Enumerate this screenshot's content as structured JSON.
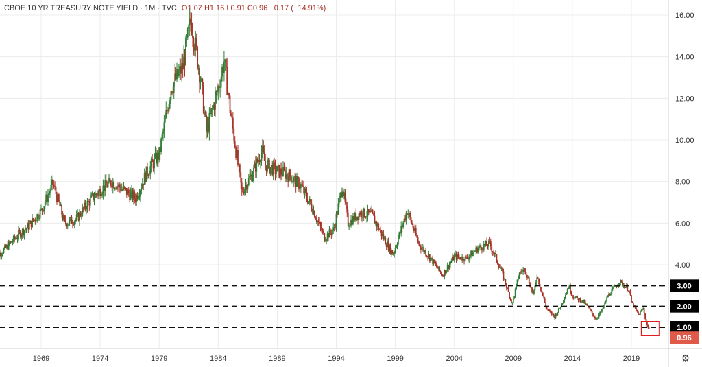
{
  "header": {
    "symbol": "CBOE 10 YR TREASURY NOTE YIELD · 1M · TVC",
    "ohlc": "O1.07  H1.16  L0.91  C0.96  −0.17 (−14.91%)"
  },
  "settings": {
    "icon": "gear-icon"
  },
  "chart_data": {
    "type": "candlestick",
    "title": "CBOE 10 YR TREASURY NOTE YIELD · 1M · TVC",
    "xlabel": "",
    "ylabel": "",
    "xlim": [
      1965.0,
      2021.0
    ],
    "ylim": [
      0.0,
      16.5
    ],
    "x_ticks": [
      "1969",
      "1974",
      "1979",
      "1984",
      "1989",
      "1994",
      "1999",
      "2004",
      "2009",
      "2014",
      "2019"
    ],
    "y_ticks": [
      "4.00",
      "6.00",
      "8.00",
      "10.00",
      "12.00",
      "14.00",
      "16.00"
    ],
    "up_color": "#2e7d32",
    "down_color": "#a83226",
    "grid": true,
    "series": [
      {
        "x": [
          1965.0,
          1966.0,
          1967.0,
          1968.0,
          1969.0,
          1970.0,
          1971.0,
          1972.0,
          1973.0,
          1974.0,
          1975.0,
          1976.0,
          1977.0,
          1978.0,
          1979.0,
          1980.0,
          1981.0,
          1981.7,
          1982.5,
          1983.0,
          1984.0,
          1984.5,
          1985.0,
          1986.0,
          1987.0,
          1987.7,
          1988.0,
          1989.0,
          1990.0,
          1991.0,
          1992.0,
          1993.0,
          1993.8,
          1994.5,
          1995.0,
          1996.0,
          1997.0,
          1998.0,
          1998.8,
          2000.0,
          2001.0,
          2002.0,
          2003.0,
          2004.0,
          2005.0,
          2006.0,
          2007.0,
          2008.0,
          2008.9,
          2009.5,
          2010.0,
          2010.7,
          2011.0,
          2011.8,
          2012.5,
          2013.0,
          2013.7,
          2014.0,
          2015.0,
          2016.0,
          2016.5,
          2017.0,
          2018.0,
          2018.8,
          2019.0,
          2019.6,
          2020.0,
          2020.3,
          2020.5
        ],
        "y": [
          4.3,
          4.8,
          5.4,
          5.9,
          6.6,
          7.9,
          6.0,
          6.2,
          7.0,
          7.6,
          8.0,
          7.6,
          7.2,
          8.5,
          9.3,
          12.5,
          13.5,
          15.8,
          13.0,
          10.4,
          12.5,
          13.8,
          11.5,
          7.5,
          8.5,
          9.5,
          8.8,
          8.5,
          8.3,
          7.8,
          6.7,
          5.3,
          5.7,
          7.8,
          6.0,
          6.5,
          6.4,
          5.3,
          4.5,
          6.6,
          5.0,
          4.3,
          3.5,
          4.4,
          4.3,
          4.8,
          5.0,
          3.7,
          2.1,
          3.6,
          3.8,
          2.5,
          3.5,
          1.9,
          1.5,
          2.0,
          3.0,
          2.5,
          2.2,
          1.4,
          1.8,
          2.5,
          3.2,
          2.8,
          2.2,
          1.6,
          1.9,
          1.1,
          0.96
        ]
      }
    ],
    "horizontal_lines": [
      {
        "value": 3.0,
        "label": "3.00"
      },
      {
        "value": 2.0,
        "label": "2.00"
      },
      {
        "value": 1.0,
        "label": "1.00"
      }
    ],
    "last_price_label": "0.96",
    "last_price_color": "#e05a4a",
    "highlight_box_color": "#e02020"
  }
}
